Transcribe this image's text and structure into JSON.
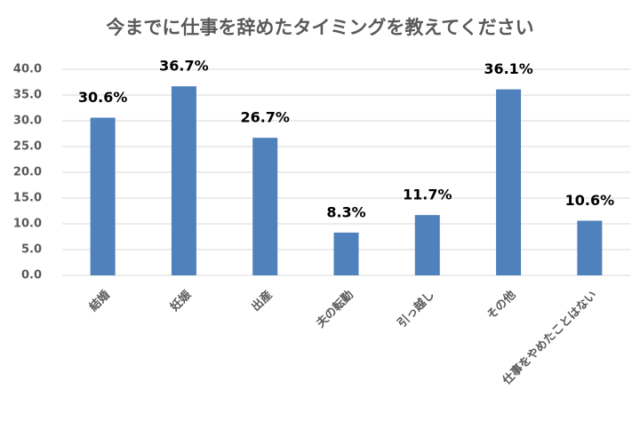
{
  "chart_data": {
    "type": "bar",
    "title": "今までに仕事を辞めたタイミングを教えてください",
    "categories": [
      "結婚",
      "妊娠",
      "出産",
      "夫の転勤",
      "引っ越し",
      "その他",
      "仕事をやめたことはない"
    ],
    "values": [
      30.6,
      36.7,
      26.7,
      8.3,
      11.7,
      36.1,
      10.6
    ],
    "value_labels": [
      "30.6%",
      "36.7%",
      "26.7%",
      "8.3%",
      "11.7%",
      "36.1%",
      "10.6%"
    ],
    "color": "#4f81bd",
    "ylim": [
      0,
      40
    ],
    "yticks": [
      {
        "value": 0,
        "label": "0.0"
      },
      {
        "value": 5,
        "label": "5.0"
      },
      {
        "value": 10,
        "label": "10.0"
      },
      {
        "value": 15,
        "label": "15.0"
      },
      {
        "value": 20,
        "label": "20.0"
      },
      {
        "value": 25,
        "label": "25.0"
      },
      {
        "value": 30,
        "label": "30.0"
      },
      {
        "value": 35,
        "label": "35.0"
      },
      {
        "value": 40,
        "label": "40.0"
      }
    ],
    "grid": true
  }
}
